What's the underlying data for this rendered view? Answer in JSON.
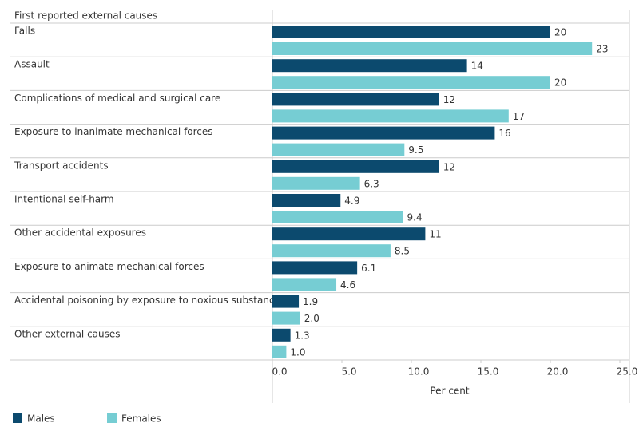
{
  "chart_data": {
    "type": "hbar",
    "y_label": "First reported external causes",
    "x_label": "Per cent",
    "categories": [
      "Falls",
      "Assault",
      "Complications of medical and surgical care",
      "Exposure to inanimate mechanical forces",
      "Transport accidents",
      "Intentional self-harm",
      "Other accidental exposures",
      "Exposure to animate mechanical forces",
      "Accidental poisoning by exposure to noxious substances",
      "Other external causes"
    ],
    "series": [
      {
        "name": "Males",
        "color": "#0c4a6e",
        "values": [
          20,
          14,
          12,
          16,
          12,
          4.9,
          11,
          6.1,
          1.9,
          1.3
        ],
        "value_labels": [
          "20",
          "14",
          "12",
          "16",
          "12",
          "4.9",
          "11",
          "6.1",
          "1.9",
          "1.3"
        ]
      },
      {
        "name": "Females",
        "color": "#76cdd3",
        "values": [
          23,
          20,
          17,
          9.5,
          6.3,
          9.4,
          8.5,
          4.6,
          2.0,
          1.0
        ],
        "value_labels": [
          "23",
          "20",
          "17",
          "9.5",
          "6.3",
          "9.4",
          "8.5",
          "4.6",
          "2.0",
          "1.0"
        ]
      }
    ],
    "xlim": [
      0,
      25
    ],
    "xticks": [
      {
        "value": 0,
        "label": "0.0"
      },
      {
        "value": 5,
        "label": "5.0"
      },
      {
        "value": 10,
        "label": "10.0"
      },
      {
        "value": 15,
        "label": "15.0"
      },
      {
        "value": 20,
        "label": "20.0"
      },
      {
        "value": 25,
        "label": "25.0"
      }
    ],
    "legend": "bottom-left"
  }
}
